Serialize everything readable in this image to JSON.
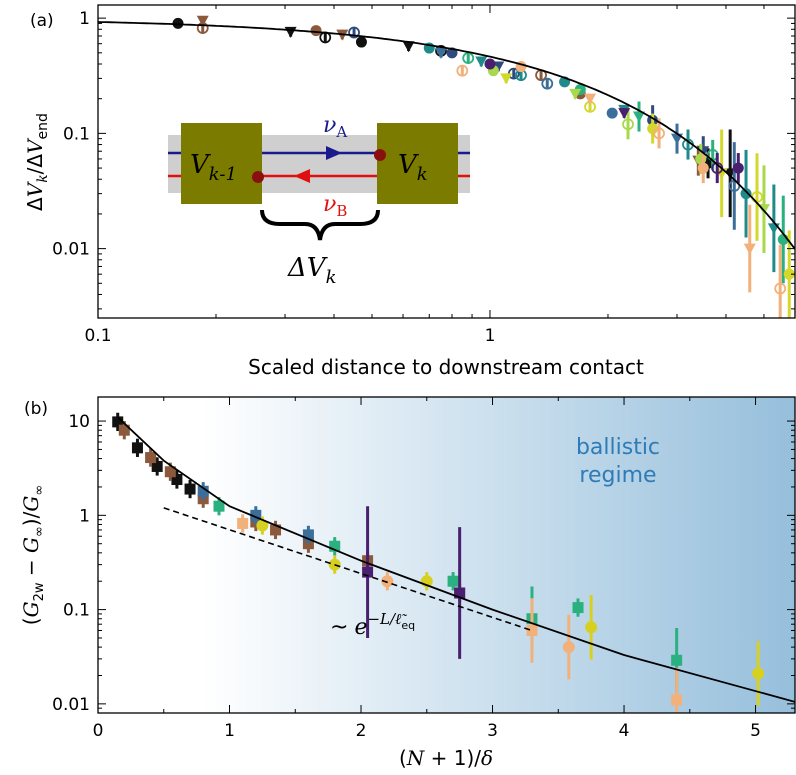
{
  "colors": {
    "fit_line": "#000000",
    "ballistic_text": "#2f7bb5",
    "gradient_end": "#96bfdc",
    "contact_fill": "#7b7b00",
    "channel_fill": "#cfcfcf",
    "edge_a": "#1a1a8c",
    "edge_b": "#e01010",
    "dot": "#8a1010"
  },
  "inset": {
    "left_contact": "V",
    "left_sub": "k-1",
    "right_contact": "V",
    "right_sub": "k",
    "nu_a": "ν",
    "nu_a_sub": "A",
    "nu_b": "ν",
    "nu_b_sub": "B",
    "delta_label": "ΔV",
    "delta_sub": "k"
  },
  "chart_data": [
    {
      "panel": "(a)",
      "type": "scatter",
      "xscale": "log",
      "yscale": "log",
      "xlim": [
        0.1,
        6.0
      ],
      "ylim": [
        0.0025,
        1.3
      ],
      "xlabel": "Scaled distance to downstream contact",
      "ylabel": "ΔV_k/ΔV_end",
      "xticks": [
        {
          "v": 0.1,
          "l": "0.1"
        },
        {
          "v": 1,
          "l": "1"
        }
      ],
      "yticks": [
        {
          "v": 0.01,
          "l": "0.01"
        },
        {
          "v": 0.1,
          "l": "0.1"
        },
        {
          "v": 1,
          "l": "1"
        }
      ],
      "fit": {
        "type": "exp",
        "formula": "y = exp(-x/1.3)",
        "xrange": [
          0.1,
          6.0
        ]
      },
      "series": [
        {
          "name": "black",
          "color": "#111111",
          "points": [
            [
              0.16,
              0.9
            ],
            [
              0.31,
              0.76
            ],
            [
              0.38,
              0.68
            ],
            [
              0.47,
              0.62
            ],
            [
              0.62,
              0.57
            ],
            [
              0.75,
              0.52
            ],
            [
              3.6,
              0.055
            ],
            [
              4.1,
              0.045
            ]
          ]
        },
        {
          "name": "brown",
          "color": "#8b5a3c",
          "points": [
            [
              0.185,
              0.95
            ],
            [
              0.185,
              0.82
            ],
            [
              0.36,
              0.78
            ],
            [
              0.42,
              0.72
            ],
            [
              1.35,
              0.32
            ],
            [
              1.7,
              0.22
            ],
            [
              3.4,
              0.058
            ]
          ]
        },
        {
          "name": "navy",
          "color": "#2e4a7e",
          "points": [
            [
              0.45,
              0.75
            ],
            [
              0.8,
              0.5
            ],
            [
              1.05,
              0.38
            ],
            [
              1.15,
              0.33
            ],
            [
              2.6,
              0.13
            ],
            [
              3.5,
              0.07
            ]
          ]
        },
        {
          "name": "teal",
          "color": "#1f8a8a",
          "points": [
            [
              0.7,
              0.55
            ],
            [
              0.95,
              0.42
            ],
            [
              1.2,
              0.32
            ],
            [
              1.55,
              0.28
            ],
            [
              2.2,
              0.16
            ],
            [
              3.2,
              0.08
            ],
            [
              4.5,
              0.03
            ],
            [
              5.3,
              0.015
            ]
          ]
        },
        {
          "name": "steel",
          "color": "#3b6e9a",
          "points": [
            [
              0.75,
              0.5
            ],
            [
              1.4,
              0.27
            ],
            [
              2.05,
              0.15
            ],
            [
              3.0,
              0.09
            ],
            [
              4.2,
              0.035
            ]
          ]
        },
        {
          "name": "green",
          "color": "#2bb07f",
          "points": [
            [
              0.88,
              0.45
            ],
            [
              1.7,
              0.24
            ],
            [
              2.4,
              0.14
            ],
            [
              3.7,
              0.065
            ],
            [
              5.6,
              0.012
            ]
          ]
        },
        {
          "name": "lime",
          "color": "#a8d94a",
          "points": [
            [
              1.02,
              0.35
            ],
            [
              1.65,
              0.22
            ],
            [
              2.25,
              0.12
            ],
            [
              3.45,
              0.06
            ],
            [
              5.0,
              0.022
            ]
          ]
        },
        {
          "name": "yellow",
          "color": "#d4d82a",
          "points": [
            [
              1.1,
              0.3
            ],
            [
              1.8,
              0.17
            ],
            [
              2.6,
              0.11
            ],
            [
              3.9,
              0.045
            ],
            [
              4.8,
              0.028
            ],
            [
              5.8,
              0.006
            ]
          ]
        },
        {
          "name": "peach",
          "color": "#f2b07a",
          "points": [
            [
              0.85,
              0.35
            ],
            [
              1.2,
              0.38
            ],
            [
              1.8,
              0.2
            ],
            [
              2.7,
              0.1
            ],
            [
              3.5,
              0.05
            ],
            [
              4.6,
              0.01
            ],
            [
              5.5,
              0.0045
            ]
          ]
        },
        {
          "name": "purple",
          "color": "#4b1f6f",
          "points": [
            [
              1.0,
              0.4
            ],
            [
              2.2,
              0.15
            ],
            [
              3.8,
              0.05
            ],
            [
              4.3,
              0.05
            ]
          ]
        }
      ]
    },
    {
      "panel": "(b)",
      "type": "scatter",
      "xscale": "linear",
      "yscale": "log",
      "xlim": [
        0,
        5.3
      ],
      "ylim": [
        0.008,
        18
      ],
      "xlabel": "(N+1)/δ",
      "ylabel": "(G_2w − G_∞)/G_∞",
      "xticks": [
        {
          "v": 0,
          "l": "0"
        },
        {
          "v": 1,
          "l": "1"
        },
        {
          "v": 2,
          "l": "2"
        },
        {
          "v": 3,
          "l": "3"
        },
        {
          "v": 4,
          "l": "4"
        },
        {
          "v": 5,
          "l": "5"
        }
      ],
      "yticks": [
        {
          "v": 0.01,
          "l": "0.01"
        },
        {
          "v": 0.1,
          "l": "0.1"
        },
        {
          "v": 1,
          "l": "1"
        },
        {
          "v": 10,
          "l": "10"
        }
      ],
      "region_label_1": "ballistic",
      "region_label_2": "regime",
      "region_start_x": 0.8,
      "annotation": "~ e^(−L/ℓ̃_eq)",
      "annotation_prefix": "~",
      "annotation_base": "e",
      "annotation_exp": "−L/ℓ̃",
      "annotation_exp_sub": "eq",
      "fit_solid": {
        "points": [
          [
            0.15,
            11
          ],
          [
            0.5,
            3.8
          ],
          [
            1.0,
            1.25
          ],
          [
            2.0,
            0.33
          ],
          [
            3.0,
            0.1
          ],
          [
            4.0,
            0.033
          ],
          [
            5.3,
            0.0105
          ]
        ]
      },
      "fit_dashed": {
        "x0": 0.5,
        "y0": 1.2,
        "x1": 3.3,
        "y1": 0.06
      },
      "series": [
        {
          "name": "black",
          "color": "#111111",
          "points": [
            [
              0.15,
              9.8
            ],
            [
              0.3,
              5.2
            ],
            [
              0.45,
              3.3
            ],
            [
              0.6,
              2.4
            ],
            [
              0.7,
              1.9
            ]
          ]
        },
        {
          "name": "brown",
          "color": "#8b5a3c",
          "points": [
            [
              0.2,
              8.0
            ],
            [
              0.4,
              4.1
            ],
            [
              0.55,
              2.9
            ],
            [
              0.8,
              1.5
            ],
            [
              1.2,
              0.85
            ],
            [
              1.35,
              0.7
            ],
            [
              1.6,
              0.5
            ],
            [
              2.05,
              0.33
            ],
            [
              2.75,
              0.15
            ]
          ]
        },
        {
          "name": "steel",
          "color": "#3b6e9a",
          "points": [
            [
              0.8,
              1.8
            ],
            [
              1.2,
              1.0
            ],
            [
              1.6,
              0.62
            ]
          ]
        },
        {
          "name": "green",
          "color": "#2bb07f",
          "points": [
            [
              0.92,
              1.25
            ],
            [
              1.8,
              0.47
            ],
            [
              2.7,
              0.2
            ],
            [
              3.3,
              0.08
            ],
            [
              3.65,
              0.105
            ],
            [
              4.4,
              0.029
            ]
          ]
        },
        {
          "name": "peach",
          "color": "#f2b07a",
          "points": [
            [
              1.1,
              0.82
            ],
            [
              2.2,
              0.2
            ],
            [
              3.3,
              0.06
            ],
            [
              3.58,
              0.04
            ],
            [
              4.4,
              0.011
            ]
          ]
        },
        {
          "name": "yellow",
          "color": "#d8d020",
          "points": [
            [
              1.25,
              0.78
            ],
            [
              1.8,
              0.3
            ],
            [
              2.5,
              0.2
            ],
            [
              3.75,
              0.065
            ],
            [
              5.02,
              0.021
            ]
          ]
        },
        {
          "name": "purple",
          "color": "#4b1f6f",
          "points": [
            [
              2.05,
              0.25
            ],
            [
              2.75,
              0.15
            ]
          ]
        }
      ]
    }
  ]
}
